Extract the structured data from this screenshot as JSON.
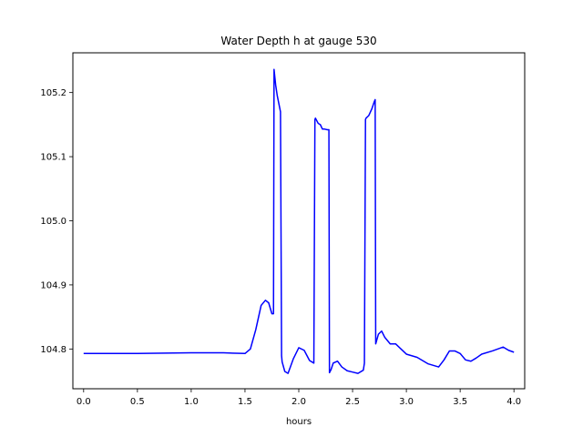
{
  "chart_data": {
    "type": "line",
    "title": "Water Depth h at gauge 530",
    "xlabel": "hours",
    "ylabel": "",
    "xlim": [
      -0.1,
      4.1
    ],
    "ylim": [
      104.738,
      105.262
    ],
    "xticks": [
      0.0,
      0.5,
      1.0,
      1.5,
      2.0,
      2.5,
      3.0,
      3.5,
      4.0
    ],
    "xtick_labels": [
      "0.0",
      "0.5",
      "1.0",
      "1.5",
      "2.0",
      "2.5",
      "3.0",
      "3.5",
      "4.0"
    ],
    "yticks": [
      104.8,
      104.9,
      105.0,
      105.1,
      105.2
    ],
    "ytick_labels": [
      "104.8",
      "104.9",
      "105.0",
      "105.1",
      "105.2"
    ],
    "grid": false,
    "legend": "none",
    "series": [
      {
        "color": "#0000ff",
        "x": [
          0.0,
          0.5,
          1.0,
          1.3,
          1.5,
          1.55,
          1.6,
          1.65,
          1.69,
          1.72,
          1.75,
          1.765,
          1.77,
          1.785,
          1.8,
          1.83,
          1.84,
          1.845,
          1.87,
          1.9,
          1.95,
          2.0,
          2.05,
          2.1,
          2.14,
          2.15,
          2.155,
          2.18,
          2.2,
          2.22,
          2.24,
          2.265,
          2.28,
          2.285,
          2.3,
          2.32,
          2.36,
          2.4,
          2.45,
          2.5,
          2.55,
          2.6,
          2.61,
          2.62,
          2.625,
          2.65,
          2.68,
          2.7,
          2.71,
          2.715,
          2.74,
          2.77,
          2.8,
          2.85,
          2.9,
          2.95,
          3.0,
          3.1,
          3.2,
          3.3,
          3.35,
          3.4,
          3.45,
          3.5,
          3.55,
          3.6,
          3.65,
          3.7,
          3.8,
          3.9,
          3.95,
          4.0
        ],
        "y": [
          104.793,
          104.793,
          104.794,
          104.794,
          104.793,
          104.8,
          104.83,
          104.868,
          104.876,
          104.872,
          104.855,
          104.855,
          105.236,
          105.212,
          105.195,
          105.17,
          104.79,
          104.78,
          104.765,
          104.762,
          104.785,
          104.802,
          104.798,
          104.782,
          104.778,
          105.158,
          105.16,
          105.152,
          105.15,
          105.143,
          105.143,
          105.142,
          105.142,
          104.763,
          104.768,
          104.778,
          104.781,
          104.772,
          104.766,
          104.764,
          104.762,
          104.767,
          104.778,
          105.158,
          105.16,
          105.164,
          105.175,
          105.185,
          105.189,
          104.808,
          104.823,
          104.828,
          104.818,
          104.808,
          104.808,
          104.8,
          104.792,
          104.787,
          104.777,
          104.772,
          104.783,
          104.797,
          104.797,
          104.793,
          104.783,
          104.781,
          104.786,
          104.792,
          104.797,
          104.803,
          104.798,
          104.795
        ]
      }
    ]
  }
}
